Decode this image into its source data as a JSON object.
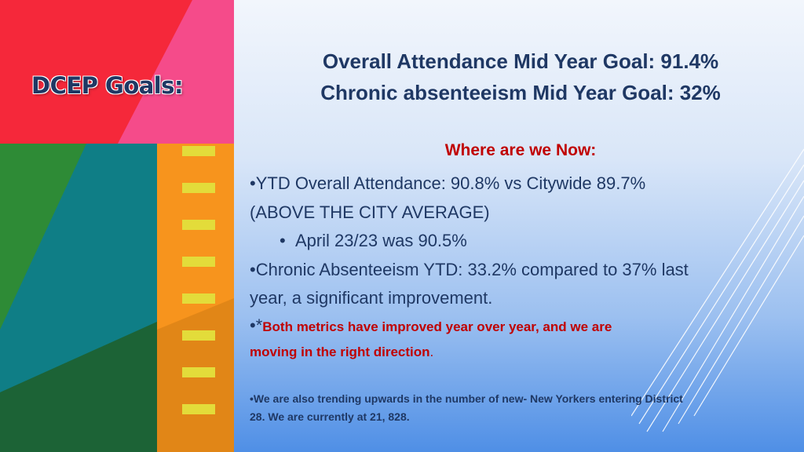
{
  "slide": {
    "title": "DCEP Goals:",
    "goals": {
      "line1": "Overall Attendance Mid Year Goal:  91.4%",
      "line2": "Chronic absenteeism Mid Year Goal:  32%"
    },
    "now_heading": "Where are we Now:",
    "bullets": {
      "b1_bullet": "•",
      "b1_line1": "YTD Overall Attendance: 90.8% vs Citywide 89.7%",
      "b1_line2": "(ABOVE THE CITY AVERAGE)",
      "sub_bullet": "•",
      "sub_text": "April 23/23 was 90.5%",
      "b2_bullet": "•",
      "b2_line1": "Chronic Absenteeism YTD: 33.2% compared to 37% last",
      "b2_line2": "year, a significant improvement.",
      "b3_bullet": "•*",
      "b3_line1": "Both metrics have improved year over year, and we are",
      "b3_line2": "moving in the right direction",
      "b3_period": "."
    },
    "note": {
      "bullet": "•",
      "line1": "We are also trending upwards in the number of new- New Yorkers entering District",
      "line2": "28. We are currently at 21, 828."
    }
  },
  "colors": {
    "heading_text": "#1f3864",
    "highlight_red": "#c00000",
    "panel_red": "#f5283a",
    "panel_pink": "#f54b8a",
    "panel_green": "#2e8b36",
    "panel_teal": "#0f7e86",
    "panel_orange": "#f7941d",
    "panel_dark_green": "#1e5e28",
    "film_mark_yellow": "#e3dc3a"
  }
}
